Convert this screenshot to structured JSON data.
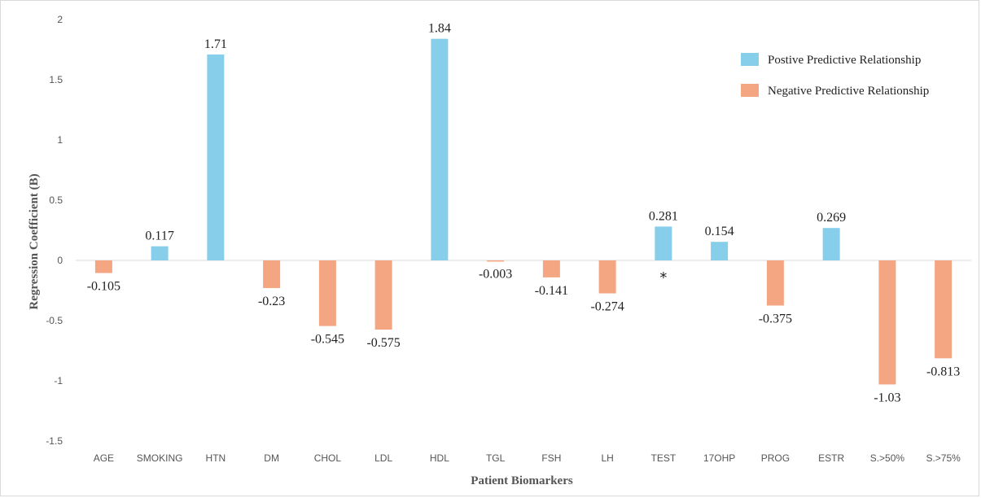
{
  "chart_data": {
    "type": "bar",
    "title": "",
    "xlabel": "Patient Biomarkers",
    "ylabel": "Regression Coefficient (B)",
    "ylim": [
      -1.5,
      2
    ],
    "yticks": [
      2,
      1.5,
      1,
      0.5,
      0,
      -0.5,
      -1,
      -1.5
    ],
    "ytick_labels": [
      "2",
      "1.5",
      "1",
      "0.5",
      "0",
      "-0.5",
      "-1",
      "-1.5"
    ],
    "categories": [
      "AGE",
      "SMOKING",
      "HTN",
      "DM",
      "CHOL",
      "LDL",
      "HDL",
      "TGL",
      "FSH",
      "LH",
      "TEST",
      "17OHP",
      "PROG",
      "ESTR",
      "S.>50%",
      "S.>75%"
    ],
    "values": [
      -0.105,
      0.117,
      1.71,
      -0.23,
      -0.545,
      -0.575,
      1.84,
      -0.003,
      -0.141,
      -0.274,
      0.281,
      0.154,
      -0.375,
      0.269,
      -1.03,
      -0.813
    ],
    "value_labels": [
      "-0.105",
      "0.117",
      "1.71",
      "-0.23",
      "-0.545",
      "-0.575",
      "1.84",
      "-0.003",
      "-0.141",
      "-0.274",
      "0.281",
      "0.154",
      "-0.375",
      "0.269",
      "-1.03",
      "-0.813"
    ],
    "annotations": [
      {
        "category": "TEST",
        "text": "*"
      }
    ],
    "grid": false,
    "legend_position": "top-right",
    "legend": [
      {
        "label": "Postive Predictive Relationship",
        "color": "#87ceeb"
      },
      {
        "label": "Negative Predictive Relationship",
        "color": "#f4a582"
      }
    ],
    "colors": {
      "positive": "#87ceeb",
      "negative": "#f4a582"
    }
  }
}
